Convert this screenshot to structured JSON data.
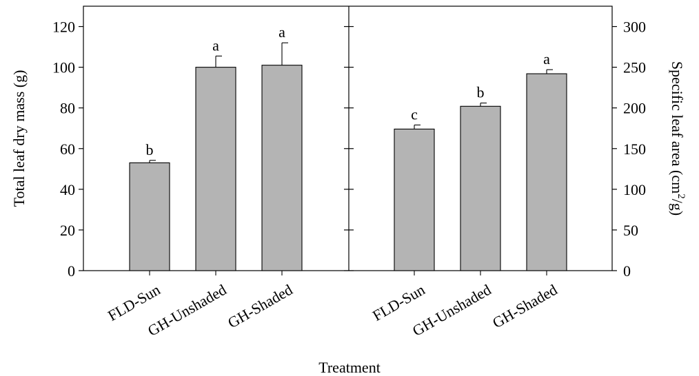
{
  "chart_data": {
    "type": "bar",
    "xlabel": "Treatment",
    "panels": [
      {
        "axis_side": "left",
        "ylabel": "Total leaf dry mass (g)",
        "ylim": [
          0,
          130
        ],
        "yticks": [
          0,
          20,
          40,
          60,
          80,
          100,
          120
        ],
        "categories": [
          "FLD-Sun",
          "GH-Unshaded",
          "GH-Shaded"
        ],
        "values": [
          53,
          100,
          101
        ],
        "errors": [
          1.2,
          5.5,
          11
        ],
        "letters": [
          "b",
          "a",
          "a"
        ],
        "bar_color": "#b4b4b4"
      },
      {
        "axis_side": "right",
        "ylabel_parts": [
          "Specific leaf area (cm",
          "2",
          "/g)"
        ],
        "ylim": [
          0,
          325
        ],
        "yticks": [
          0,
          50,
          100,
          150,
          200,
          250,
          300
        ],
        "categories": [
          "FLD-Sun",
          "GH-Unshaded",
          "GH-Shaded"
        ],
        "values": [
          174,
          202,
          242
        ],
        "errors": [
          5,
          4,
          5
        ],
        "letters": [
          "c",
          "b",
          "a"
        ],
        "bar_color": "#b4b4b4"
      }
    ]
  }
}
